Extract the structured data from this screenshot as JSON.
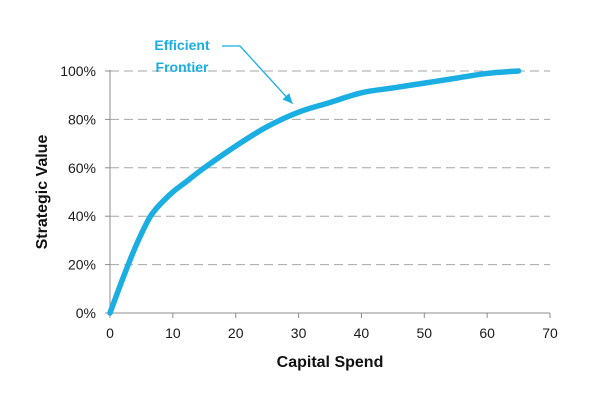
{
  "chart_data": {
    "type": "line",
    "title": "",
    "xlabel": "Capital Spend",
    "ylabel": "Strategic Value",
    "xlim": [
      0,
      70
    ],
    "ylim": [
      0,
      100
    ],
    "x_ticks": [
      0,
      10,
      20,
      30,
      40,
      50,
      60,
      70
    ],
    "y_ticks": [
      0,
      20,
      40,
      60,
      80,
      100
    ],
    "x_tick_labels": [
      "0",
      "10",
      "20",
      "30",
      "40",
      "50",
      "60",
      "70"
    ],
    "y_tick_labels": [
      "0%",
      "20%",
      "40%",
      "60%",
      "80%",
      "100%"
    ],
    "grid": {
      "horizontal": true,
      "style": "dashed"
    },
    "series": [
      {
        "color": "#1aaee3",
        "x": [
          0,
          2,
          4,
          6,
          7,
          8,
          10,
          12,
          15,
          20,
          25,
          30,
          35,
          40,
          45,
          50,
          55,
          60,
          65
        ],
        "y": [
          0,
          14,
          27,
          38,
          42,
          45,
          50,
          54,
          60,
          69,
          77,
          83,
          87,
          91,
          93,
          95,
          97,
          99,
          100
        ]
      }
    ],
    "annotations": [
      {
        "lines": [
          "Efficient",
          "Frontier"
        ],
        "color": "#1aaee3",
        "arrow_to": {
          "x": 30,
          "y": 84
        }
      }
    ]
  }
}
